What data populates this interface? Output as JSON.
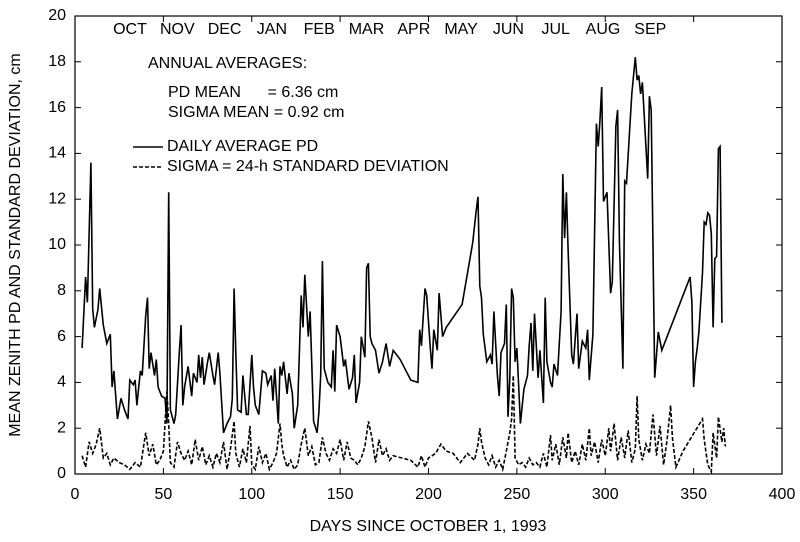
{
  "chart_data": {
    "type": "line",
    "xlabel": "DAYS SINCE OCTOBER 1, 1993",
    "ylabel": "MEAN ZENITH PD AND STANDARD DEVIATION, cm",
    "month_labels": [
      "OCT",
      "NOV",
      "DEC",
      "JAN",
      "FEB",
      "MAR",
      "APR",
      "MAY",
      "JUN",
      "JUL",
      "AUG",
      "SEP"
    ],
    "annotations": [
      "ANNUAL AVERAGES:",
      "PD MEAN      = 6.36 cm",
      "SIGMA MEAN = 0.92 cm"
    ],
    "xlim": [
      0,
      400
    ],
    "xticks": [
      0,
      50,
      100,
      150,
      200,
      250,
      300,
      350,
      400
    ],
    "ylim": [
      0,
      20
    ],
    "yticks": [
      0,
      2,
      4,
      6,
      8,
      10,
      12,
      14,
      16,
      18,
      20
    ],
    "series": [
      {
        "name": "DAILY AVERAGE PD",
        "color": "#000000",
        "dash": "solid",
        "x": [
          4,
          6,
          7,
          9,
          10,
          11,
          13,
          14,
          16,
          18,
          20,
          21,
          22,
          24,
          26,
          28,
          30,
          31,
          33,
          34,
          35,
          37,
          38,
          40,
          41,
          42,
          43,
          45,
          46,
          47,
          49,
          51,
          52,
          53,
          54,
          56,
          57,
          59,
          60,
          61,
          62,
          64,
          66,
          67,
          69,
          70,
          71,
          72,
          73,
          75,
          76,
          78,
          79,
          81,
          82,
          84,
          86,
          88,
          89,
          90,
          91,
          92,
          94,
          95,
          97,
          98,
          100,
          101,
          102,
          104,
          106,
          108,
          109,
          111,
          112,
          113,
          115,
          116,
          117,
          118,
          120,
          121,
          123,
          124,
          126,
          128,
          129,
          130,
          132,
          133,
          135,
          137,
          138,
          139,
          140,
          141,
          143,
          145,
          146,
          147,
          148,
          150,
          152,
          153,
          155,
          157,
          158,
          159,
          161,
          162,
          164,
          165,
          166,
          167,
          168,
          170,
          172,
          174,
          176,
          178,
          180,
          184,
          190,
          194,
          195,
          196,
          198,
          199,
          201,
          202,
          203,
          205,
          206,
          208,
          210,
          219,
          225,
          227,
          228,
          229,
          230,
          231,
          233,
          235,
          236,
          237,
          239,
          240,
          241,
          243,
          244,
          245,
          246,
          247,
          248,
          249,
          250,
          252,
          254,
          256,
          257,
          258,
          259,
          260,
          262,
          263,
          265,
          266,
          267,
          269,
          270,
          271,
          273,
          275,
          276,
          277,
          278,
          279,
          281,
          282,
          284,
          285,
          287,
          289,
          290,
          291,
          293,
          295,
          296,
          297,
          298,
          299,
          301,
          303,
          304,
          306,
          307,
          308,
          310,
          311,
          312,
          315,
          317,
          318,
          319,
          320,
          321,
          324,
          325,
          326,
          328,
          330,
          332,
          348,
          349,
          350,
          351,
          352,
          353,
          355,
          356,
          357,
          358,
          359,
          360,
          361,
          362,
          363,
          364,
          365,
          366
        ],
        "values": [
          5.5,
          8.6,
          7.5,
          13.6,
          7.2,
          6.4,
          7.2,
          8.1,
          6.5,
          5.7,
          6.1,
          3.8,
          4.5,
          2.4,
          3.3,
          2.8,
          2.4,
          4.1,
          3.9,
          4.1,
          3.0,
          4.5,
          4.3,
          6.9,
          7.7,
          4.6,
          5.3,
          4.3,
          5.0,
          3.8,
          3.4,
          3.3,
          2.2,
          12.3,
          2.8,
          2.2,
          2.6,
          5.3,
          6.5,
          3.0,
          3.8,
          4.7,
          3.4,
          4.4,
          4.0,
          5.2,
          4.2,
          5.1,
          3.9,
          4.9,
          5.3,
          4.3,
          3.9,
          5.3,
          4.4,
          1.8,
          2.2,
          2.5,
          3.3,
          8.1,
          5.3,
          2.8,
          2.7,
          4.3,
          2.6,
          2.6,
          5.2,
          3.8,
          3.0,
          2.6,
          4.5,
          4.4,
          3.9,
          4.3,
          3.2,
          4.6,
          2.2,
          4.7,
          4.3,
          4.9,
          3.5,
          4.4,
          3.5,
          2.0,
          3.0,
          7.8,
          6.4,
          8.7,
          6.0,
          7.1,
          2.3,
          1.8,
          2.7,
          4.3,
          9.3,
          4.6,
          4.0,
          3.8,
          5.4,
          3.6,
          6.5,
          6.0,
          4.7,
          5.0,
          3.7,
          4.2,
          5.2,
          3.1,
          4.0,
          6.0,
          5.1,
          9.0,
          9.2,
          6.0,
          5.7,
          5.4,
          4.4,
          4.9,
          5.7,
          4.7,
          5.4,
          5.0,
          4.1,
          4.0,
          6.3,
          5.6,
          8.1,
          7.8,
          5.5,
          4.6,
          6.3,
          5.4,
          7.9,
          6.0,
          6.4,
          7.4,
          10.1,
          11.5,
          12.1,
          8.2,
          7.7,
          6.1,
          4.9,
          5.2,
          4.8,
          7.1,
          4.3,
          3.4,
          5.3,
          5.7,
          7.4,
          2.5,
          4.2,
          8.1,
          7.7,
          4.9,
          5.5,
          2.2,
          3.7,
          4.3,
          5.6,
          6.6,
          4.5,
          7.0,
          4.2,
          5.4,
          3.1,
          7.7,
          4.9,
          4.0,
          3.8,
          4.8,
          4.3,
          7.1,
          13.1,
          10.3,
          12.3,
          9.8,
          5.2,
          4.8,
          7.0,
          4.6,
          5.8,
          5.5,
          6.3,
          4.1,
          6.1,
          15.3,
          14.3,
          15.4,
          16.9,
          11.9,
          12.3,
          7.9,
          8.4,
          15.2,
          15.9,
          10.2,
          4.6,
          12.8,
          12.7,
          16.6,
          18.2,
          17.2,
          17.4,
          16.6,
          17.1,
          12.9,
          16.5,
          15.9,
          4.2,
          6.2,
          5.4,
          8.6,
          7.5,
          3.8,
          4.9,
          5.5,
          6.2,
          8.8,
          11.0,
          10.9,
          11.4,
          11.3,
          10.5,
          6.4,
          9.4,
          9.5,
          14.2,
          14.3,
          6.6
        ]
      },
      {
        "name": "SIGMA = 24-h STANDARD DEVIATION",
        "color": "#000000",
        "dash": "dashed",
        "x": [
          4,
          6,
          8,
          10,
          12,
          14,
          16,
          18,
          20,
          22,
          25,
          28,
          31,
          34,
          37,
          40,
          42,
          44,
          46,
          48,
          50,
          52,
          53,
          54,
          56,
          58,
          60,
          62,
          64,
          66,
          68,
          70,
          72,
          74,
          76,
          78,
          80,
          82,
          84,
          86,
          88,
          90,
          91,
          93,
          95,
          97,
          99,
          100,
          102,
          104,
          106,
          108,
          110,
          112,
          114,
          116,
          117,
          118,
          120,
          122,
          124,
          126,
          128,
          130,
          132,
          134,
          136,
          138,
          140,
          142,
          144,
          146,
          148,
          150,
          152,
          154,
          156,
          158,
          160,
          162,
          164,
          166,
          168,
          170,
          172,
          174,
          176,
          178,
          180,
          185,
          190,
          194,
          196,
          198,
          200,
          204,
          207,
          210,
          214,
          218,
          222,
          226,
          228,
          229,
          230,
          232,
          234,
          236,
          238,
          240,
          242,
          244,
          246,
          247,
          248,
          249,
          251,
          253,
          255,
          257,
          259,
          261,
          263,
          265,
          267,
          269,
          270,
          272,
          274,
          276,
          278,
          279,
          281,
          283,
          285,
          287,
          289,
          291,
          292,
          294,
          296,
          298,
          300,
          302,
          303,
          305,
          307,
          309,
          311,
          313,
          315,
          317,
          318,
          319,
          321,
          323,
          325,
          327,
          329,
          331,
          333,
          335,
          337,
          338,
          340,
          344,
          355,
          356,
          358,
          360,
          361,
          363,
          364,
          366,
          367,
          368
        ],
        "values": [
          0.8,
          0.3,
          1.4,
          0.9,
          1.3,
          2.0,
          0.7,
          0.9,
          0.4,
          0.7,
          0.5,
          0.4,
          0.2,
          0.5,
          0.3,
          1.8,
          0.8,
          1.3,
          0.4,
          0.6,
          1.0,
          3.6,
          2.2,
          0.5,
          0.3,
          1.4,
          0.9,
          0.6,
          1.0,
          0.4,
          1.5,
          0.6,
          1.2,
          0.4,
          0.8,
          0.3,
          0.9,
          0.5,
          1.4,
          0.2,
          1.1,
          2.3,
          0.9,
          0.3,
          1.1,
          0.5,
          2.1,
          0.4,
          0.2,
          1.2,
          0.5,
          0.9,
          0.2,
          0.5,
          0.9,
          2.2,
          1.3,
          0.8,
          0.3,
          0.6,
          0.2,
          0.4,
          1.3,
          2.0,
          0.8,
          1.2,
          0.4,
          0.5,
          1.6,
          0.9,
          0.6,
          1.1,
          0.9,
          1.5,
          0.6,
          1.4,
          0.7,
          0.6,
          0.4,
          0.7,
          1.2,
          2.3,
          1.6,
          0.5,
          1.5,
          0.8,
          1.1,
          0.6,
          0.8,
          0.7,
          0.6,
          0.3,
          0.8,
          0.3,
          0.7,
          0.9,
          1.3,
          1.0,
          0.9,
          0.5,
          0.9,
          0.6,
          1.3,
          2.0,
          1.4,
          0.7,
          0.4,
          0.8,
          0.3,
          0.6,
          0.2,
          1.0,
          1.8,
          2.4,
          4.3,
          0.7,
          0.4,
          0.5,
          0.3,
          0.7,
          0.4,
          0.5,
          0.3,
          0.9,
          0.3,
          1.7,
          0.6,
          1.3,
          0.4,
          1.6,
          0.7,
          1.8,
          0.5,
          1.0,
          0.4,
          1.3,
          0.6,
          2.0,
          0.8,
          1.4,
          0.5,
          1.5,
          0.8,
          2.0,
          1.0,
          2.2,
          0.6,
          1.6,
          0.7,
          1.9,
          0.5,
          1.1,
          3.4,
          1.5,
          0.6,
          1.3,
          0.9,
          2.6,
          0.8,
          2.1,
          0.4,
          1.5,
          3.0,
          1.6,
          0.3,
          1.0,
          2.4,
          1.5,
          0.4,
          0.1,
          1.8,
          0.7,
          2.5,
          1.4,
          2.0,
          1.2
        ]
      }
    ]
  }
}
